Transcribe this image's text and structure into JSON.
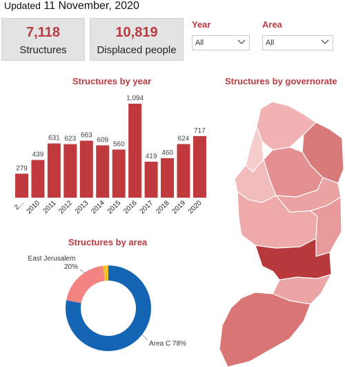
{
  "header": {
    "prefix": "Updated",
    "date": "11 November, 2020"
  },
  "kpis": [
    {
      "value": "7,118",
      "label": "Structures"
    },
    {
      "value": "10,819",
      "label": "Displaced people"
    }
  ],
  "filters": [
    {
      "label": "Year",
      "value": "All",
      "icon": "chevron-down-icon"
    },
    {
      "label": "Area",
      "value": "All",
      "icon": "chevron-down-icon"
    }
  ],
  "colors": {
    "accent": "#b93a3f",
    "bar": "#c0393c",
    "area_c": "#1565b5",
    "east_jerusalem": "#f48482",
    "other": "#f2c12e"
  },
  "chart_data": [
    {
      "type": "bar",
      "title": "Structures by year",
      "categories": [
        "2...",
        "2010",
        "2011",
        "2012",
        "2013",
        "2014",
        "2015",
        "2016",
        "2017",
        "2018",
        "2019",
        "2020"
      ],
      "values": [
        279,
        439,
        631,
        623,
        663,
        609,
        560,
        1094,
        419,
        460,
        624,
        717
      ],
      "value_labels": [
        "279",
        "439",
        "631",
        "623",
        "663",
        "609",
        "560",
        "1,094",
        "419",
        "460",
        "624",
        "717"
      ],
      "ylim": [
        0,
        1094
      ],
      "grid": false
    },
    {
      "type": "pie",
      "title": "Structures by area",
      "labels": [
        "Area C",
        "East Jerusalem",
        ""
      ],
      "values": [
        78,
        20,
        2
      ],
      "value_labels": [
        "78%",
        "20%",
        ""
      ]
    }
  ],
  "map": {
    "title": "Structures by governorate"
  }
}
